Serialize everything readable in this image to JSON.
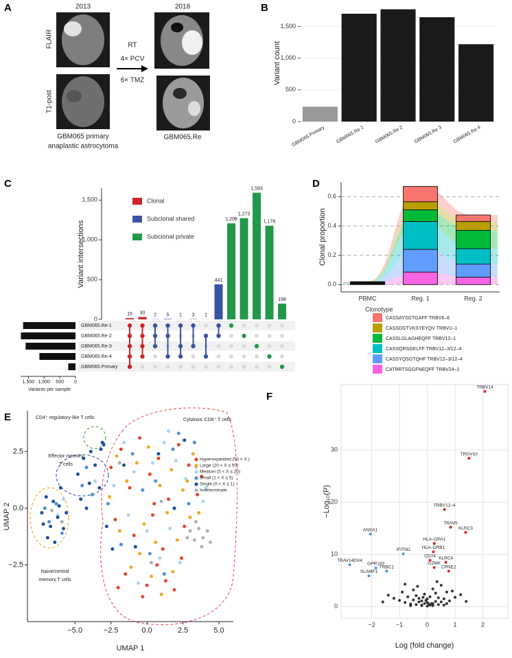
{
  "panels": {
    "A": {
      "letter": "A",
      "year_before": "2013",
      "year_after": "2018",
      "row_labels": [
        "FLAIR",
        "T1-post"
      ],
      "treatment": [
        "RT",
        "4× PCV",
        "6× TMZ"
      ],
      "caption_before": [
        "GBM065 primary",
        "anaplastic astrocytoma"
      ],
      "caption_after": "GBM065.Re"
    }
  },
  "chart_data": [
    {
      "letter": "B",
      "type": "bar",
      "ylabel": "Variant count",
      "categories": [
        "GBM065.Primary",
        "GBM065.Re 1",
        "GBM065.Re 2",
        "GBM065.Re 3",
        "GBM065.Re 4"
      ],
      "values": [
        235,
        1700,
        1770,
        1645,
        1220
      ],
      "colors": [
        "#999999",
        "#1a1a1a",
        "#1a1a1a",
        "#1a1a1a",
        "#1a1a1a"
      ],
      "ylim": [
        0,
        1830
      ],
      "yticks": [
        0,
        500,
        {
          "value": 1000,
          "label": "1,000"
        },
        {
          "value": 1500,
          "label": "1,500"
        }
      ]
    },
    {
      "letter": "C",
      "type": "upset",
      "ylabel": "Variant intersections",
      "values": [
        15,
        30,
        2,
        5,
        1,
        3,
        1,
        441,
        1208,
        1273,
        1593,
        1178,
        198
      ],
      "value_labels": [
        "15",
        "30",
        "2",
        "5",
        "1",
        "3",
        "1",
        "441",
        "1,208",
        "1,273",
        "1,593",
        "1,178",
        "198"
      ],
      "bar_group": [
        0,
        0,
        1,
        1,
        1,
        1,
        1,
        1,
        2,
        2,
        2,
        2,
        2
      ],
      "legend": [
        {
          "name": "Clonal",
          "color": "#cc2529"
        },
        {
          "name": "Subclonal shared",
          "color": "#3a53a4"
        },
        {
          "name": "Subclonal private",
          "color": "#22994a"
        }
      ],
      "ylim": [
        0,
        1650
      ],
      "yticks": [
        0,
        500,
        {
          "value": 1000,
          "label": "1,000"
        },
        {
          "value": 1500,
          "label": "1,500"
        }
      ],
      "sets": [
        "GBM065.Re-1",
        "GBM065.Re-2",
        "GBM065.Re-3",
        "GBM065.Re-4",
        "GBM065.Primary"
      ],
      "set_sizes": [
        1670,
        1740,
        1590,
        1150,
        230
      ],
      "set_xlim": [
        0,
        1750
      ],
      "set_xticks": [
        0,
        500,
        {
          "value": 1000,
          "label": "1,000"
        },
        {
          "value": 1500,
          "label": "1,500"
        }
      ],
      "set_xlabel": "Variants per sample",
      "membership": [
        [
          0,
          1,
          2,
          3,
          4
        ],
        [
          0,
          1,
          2,
          3
        ],
        [
          0,
          1,
          2
        ],
        [
          0,
          1,
          3
        ],
        [
          0,
          2,
          3
        ],
        [
          0,
          2
        ],
        [
          1,
          3
        ],
        [
          0,
          1
        ],
        [
          0
        ],
        [
          1
        ],
        [
          2
        ],
        [
          3
        ],
        [
          4
        ]
      ]
    },
    {
      "letter": "D",
      "type": "stacked-area-bar",
      "ylabel": "Clonal proportion",
      "legend_title": "Clonotype",
      "categories": [
        "PBMC",
        "Reg. 1",
        "Reg. 2"
      ],
      "series": [
        {
          "name": "CASSAYSGTGAFF TRBV6–6",
          "color": "#f8766d",
          "values": [
            0.004,
            0.105,
            0.045
          ]
        },
        {
          "name": "CASSDGTVKSYEYQV TRBV2–1",
          "color": "#b79f00",
          "values": [
            0.003,
            0.055,
            0.06
          ]
        },
        {
          "name": "CASSLGLAGHEQFF TRBV12–1",
          "color": "#00ba38",
          "values": [
            0.003,
            0.08,
            0.125
          ]
        },
        {
          "name": "CASSQRSGELFF TRBV12–3/12–4",
          "color": "#00bfc4",
          "values": [
            0.004,
            0.19,
            0.105
          ]
        },
        {
          "name": "CASSYQSGTQHF TRBV12–3/12–4",
          "color": "#619cff",
          "values": [
            0.003,
            0.155,
            0.09
          ]
        },
        {
          "name": "CATRRTSGGFNEQFF TRBV24–1",
          "color": "#f564e3",
          "values": [
            0.003,
            0.085,
            0.05
          ]
        }
      ],
      "ylim": [
        -0.05,
        0.7
      ],
      "yticks": [
        {
          "value": 0,
          "label": "0.0"
        },
        {
          "value": 0.2,
          "label": "0.2"
        },
        {
          "value": 0.4,
          "label": "0.4"
        },
        {
          "value": 0.6,
          "label": "0.6"
        }
      ],
      "grid": true
    },
    {
      "letter": "E",
      "type": "scatter",
      "xlabel": "UMAP 1",
      "ylabel": "UMAP 2",
      "xlim": [
        -8.3,
        6.0
      ],
      "ylim": [
        -5,
        4.3
      ],
      "xticks": [
        {
          "value": -5,
          "label": "−5.0"
        },
        {
          "value": -2.5,
          "label": "−2.5"
        },
        {
          "value": 0,
          "label": "0.0"
        },
        {
          "value": 2.5,
          "label": "2.5"
        },
        {
          "value": 5,
          "label": "5.0"
        }
      ],
      "yticks": [
        {
          "value": -2.5,
          "label": "−2.5"
        },
        {
          "value": 0,
          "label": "0.0"
        },
        {
          "value": 2.5,
          "label": "2.5"
        }
      ],
      "series": [
        {
          "name": "Hyperexpanded (50 < X )",
          "color": "#e3452b",
          "x": [
            -2.5,
            -1.8,
            -1.2,
            -0.5,
            0.2,
            0.8,
            1.5,
            2.2,
            2.9,
            3.5,
            -2.2,
            -0.9,
            0.4,
            1.1,
            2.6,
            3.8,
            -1.5,
            0.0,
            0.7,
            1.9,
            -0.3,
            1.3,
            2.4,
            0.5,
            -2.0
          ],
          "y": [
            1.8,
            2.6,
            0.9,
            3.1,
            1.5,
            2.2,
            0.4,
            2.8,
            1.9,
            0.6,
            -0.5,
            -1.2,
            -0.3,
            -1.8,
            -0.8,
            1.4,
            -2.9,
            -3.4,
            -2.5,
            -3.6,
            -3.9,
            -3.2,
            -2.2,
            0.2,
            -3.5
          ]
        },
        {
          "name": "Large (20 < X ≤ 50)",
          "color": "#f5a623",
          "x": [
            -2.1,
            -1.4,
            -0.7,
            0.1,
            0.9,
            1.7,
            2.5,
            3.2,
            -1.9,
            -0.2,
            0.6,
            1.4,
            2.1,
            3.0,
            -1.1,
            0.3,
            1.0,
            -0.5,
            2.8,
            3.6,
            -2.6,
            1.8
          ],
          "y": [
            2.3,
            1.2,
            2.0,
            2.7,
            1.0,
            1.7,
            0.8,
            2.4,
            -1.0,
            -0.7,
            -1.5,
            -0.2,
            -1.4,
            -0.4,
            -2.6,
            -3.0,
            -3.8,
            -2.0,
            1.2,
            -0.2,
            0.5,
            -2.8
          ]
        },
        {
          "name": "Medium (5 < X ≤ 20)",
          "color": "#a9d4ee",
          "x": [
            -2.3,
            -1.6,
            -0.9,
            0.4,
            1.2,
            2.0,
            2.7,
            3.4,
            4.1,
            -1.3,
            0.0,
            1.6,
            2.3,
            -0.6,
            0.9,
            3.9,
            -3.6,
            -6.2,
            -5.8,
            1.5
          ],
          "y": [
            1.0,
            2.9,
            1.6,
            2.0,
            2.9,
            2.1,
            1.3,
            1.8,
            0.9,
            -0.3,
            -1.0,
            -0.9,
            -2.4,
            -3.3,
            -2.2,
            0.3,
            1.2,
            -0.3,
            0.4,
            3.4
          ]
        },
        {
          "name": "Small (1 < X ≤ 5)",
          "color": "#4f8fd1",
          "x": [
            -4.2,
            -3.8,
            -6.8,
            -6.3,
            -5.9,
            -2.7,
            -1.0,
            0.6,
            1.8,
            2.9,
            -0.3,
            1.2,
            -1.8,
            3.3,
            -7.1,
            -4.5,
            2.2,
            0.2
          ],
          "y": [
            1.8,
            0.6,
            -0.6,
            0.2,
            -1.1,
            0.2,
            2.4,
            1.2,
            2.6,
            0.2,
            0.8,
            -2.9,
            -1.6,
            2.9,
            0.0,
            1.0,
            3.3,
            -2.0
          ]
        },
        {
          "name": "Single (0 < X ≤ 1)",
          "color": "#1d4f9e",
          "x": [
            -7.3,
            -7.0,
            -6.7,
            -6.5,
            -6.2,
            -6.0,
            -5.8,
            -6.9,
            -6.4,
            -6.1,
            -7.2,
            -5.6,
            -4.8,
            -4.4,
            -4.0,
            -3.6,
            -4.6,
            -4.2,
            -3.9,
            -3.3,
            -3.1,
            -3.2,
            -3.0,
            -2.8,
            -2.4,
            -1.6,
            0.8,
            2.6,
            -0.8,
            1.9
          ],
          "y": [
            -0.2,
            0.5,
            -0.8,
            0.3,
            -0.4,
            0.9,
            -0.9,
            -1.3,
            -1.5,
            0.1,
            -0.7,
            -0.2,
            1.5,
            2.2,
            1.1,
            1.9,
            0.4,
            0.0,
            2.5,
            0.9,
            2.9,
            2.6,
            2.8,
            -0.8,
            -1.8,
            1.9,
            2.4,
            3.0,
            -1.7,
            0.0
          ]
        },
        {
          "name": "Indeterminate",
          "color": "#b0b0b0",
          "x": [
            3.0,
            3.3,
            3.6,
            3.9,
            4.2,
            3.4,
            3.8,
            4.4,
            2.8,
            -6.6,
            -5.9,
            1.0,
            -1.9,
            0.3
          ],
          "y": [
            -1.0,
            -1.4,
            -0.9,
            -1.3,
            -1.0,
            -0.6,
            -1.7,
            -1.5,
            -1.3,
            -0.1,
            -0.6,
            0.3,
            2.0,
            -2.4
          ]
        }
      ],
      "annotations": [
        {
          "text": "CD4⁺ regulatory-like T cells",
          "color": "#4daf4a"
        },
        {
          "lines": [
            "Effector memory",
            "T cells"
          ],
          "color": "#3b5bb5"
        },
        {
          "lines": [
            "Naive/central",
            "memory T cells"
          ],
          "color": "#e8b130"
        },
        {
          "text": "Cytotoxic CD8⁺ T cells",
          "color": "#e8606a"
        }
      ]
    },
    {
      "letter": "F",
      "type": "volcano",
      "xlabel": "Log (fold change)",
      "ylabel": "−Log₁₀(P)",
      "xlim": [
        -3.1,
        2.9
      ],
      "ylim": [
        -2.2,
        42.5
      ],
      "xticks": [
        {
          "value": -2,
          "label": "−2"
        },
        {
          "value": -1,
          "label": "−1"
        },
        0,
        1,
        2
      ],
      "yticks": [
        0,
        10,
        20,
        30
      ],
      "grid": true,
      "series": [
        {
          "color": "#d62728",
          "x": [
            2.07,
            1.5,
            0.62,
            0.84,
            1.38,
            0.25,
            0.22,
            0.1,
            0.67,
            0.25,
            0.77
          ],
          "y": [
            41.2,
            28.4,
            18.6,
            15.2,
            14.2,
            12.1,
            10.5,
            8.9,
            8.5,
            7.5,
            6.8
          ],
          "labels": [
            "TRBV14",
            "TRGV10",
            "TRBV12–4",
            "TRAV5",
            "KLRC3",
            "HLA–DPA1",
            "HLA–DRB1",
            "CD74",
            "KLRC4",
            "GZMK",
            "CPNE2"
          ]
        },
        {
          "color": "#4a90d9",
          "x": [
            -2.05,
            -0.86,
            -2.79,
            -1.85,
            -1.46,
            -2.1
          ],
          "y": [
            13.9,
            10.1,
            8.0,
            7.4,
            6.8,
            5.9
          ],
          "labels": [
            "ANXA1",
            "IFITM2",
            "TRAV14DV4",
            "GPR183",
            "TRBC1",
            "SLAMF1"
          ]
        },
        {
          "color": "#333333",
          "x": [
            -1.4,
            -1.2,
            -1.0,
            -0.9,
            -0.8,
            -0.7,
            -0.6,
            -0.5,
            -0.5,
            -0.4,
            -0.4,
            -0.3,
            -0.3,
            -0.2,
            -0.2,
            -0.1,
            -0.1,
            0.0,
            0.0,
            0.0,
            0.1,
            0.1,
            0.2,
            0.2,
            0.3,
            0.3,
            0.4,
            0.4,
            0.5,
            0.5,
            0.6,
            0.7,
            0.8,
            0.9,
            1.0,
            1.2,
            -0.6,
            -0.2,
            0.2,
            0.6,
            -1.6,
            1.4,
            -0.8,
            0.35,
            -0.35,
            0.05,
            -0.05,
            0.15,
            -0.15,
            0.7
          ],
          "y": [
            2.2,
            1.6,
            1.2,
            2.8,
            0.8,
            1.9,
            0.5,
            1.3,
            3.2,
            0.4,
            2.1,
            0.9,
            1.6,
            0.2,
            1.1,
            0.6,
            2.4,
            0.1,
            0.8,
            1.5,
            0.3,
            1.9,
            0.6,
            3.4,
            1.0,
            2.6,
            0.4,
            1.7,
            0.9,
            4.1,
            1.5,
            2.8,
            1.1,
            3.0,
            1.8,
            2.3,
            0.2,
            0.3,
            0.2,
            0.3,
            0.9,
            1.0,
            4.3,
            4.8,
            3.9,
            0.5,
            1.2,
            0.6,
            1.8,
            0.6
          ]
        }
      ]
    }
  ]
}
